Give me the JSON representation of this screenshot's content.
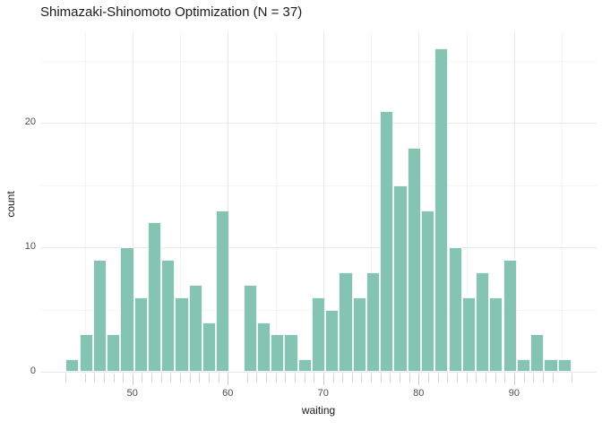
{
  "chart_data": {
    "type": "bar",
    "subtype": "histogram",
    "title": "Shimazaki-Shinomoto Optimization (N = 37)",
    "xlabel": "waiting",
    "ylabel": "count",
    "n_bins": 37,
    "bin_start": 43,
    "bin_width": 1.4324324,
    "counts": [
      1,
      3,
      9,
      3,
      10,
      6,
      12,
      9,
      6,
      7,
      4,
      13,
      0,
      7,
      4,
      3,
      3,
      1,
      6,
      5,
      8,
      6,
      8,
      21,
      15,
      18,
      13,
      26,
      10,
      6,
      8,
      6,
      9,
      1,
      3,
      1,
      1
    ],
    "x_major_ticks": [
      50,
      60,
      70,
      80,
      90
    ],
    "x_minor_gridlines": [
      45,
      55,
      65,
      75,
      85,
      95
    ],
    "y_major_ticks": [
      0,
      10,
      20
    ],
    "y_minor_gridlines": [
      5,
      15,
      25
    ],
    "xlim": [
      40.35,
      98.65
    ],
    "ylim": [
      0,
      27.3
    ],
    "grid": "on",
    "legend": "none",
    "rug_values": [
      43,
      45,
      46,
      47,
      48,
      49,
      50,
      51,
      52,
      53,
      54,
      55,
      56,
      57,
      58,
      59,
      60,
      62,
      63,
      64,
      65,
      66,
      67,
      68,
      69,
      70,
      71,
      72,
      73,
      74,
      75,
      76,
      77,
      78,
      79,
      80,
      81,
      82,
      83,
      84,
      85,
      86,
      87,
      88,
      89,
      90,
      91,
      92,
      93,
      94,
      96
    ],
    "colors": {
      "bar_fill": "#85c3b2",
      "bar_border": "#ffffff",
      "grid_major": "#e9e9e9",
      "grid_minor": "#f4f4f4",
      "rug": "#d4d4d4",
      "axis_tick": "#cccccc",
      "tick_label": "#4d4d4d",
      "text": "#1a1a1a",
      "background": "#ffffff"
    }
  }
}
